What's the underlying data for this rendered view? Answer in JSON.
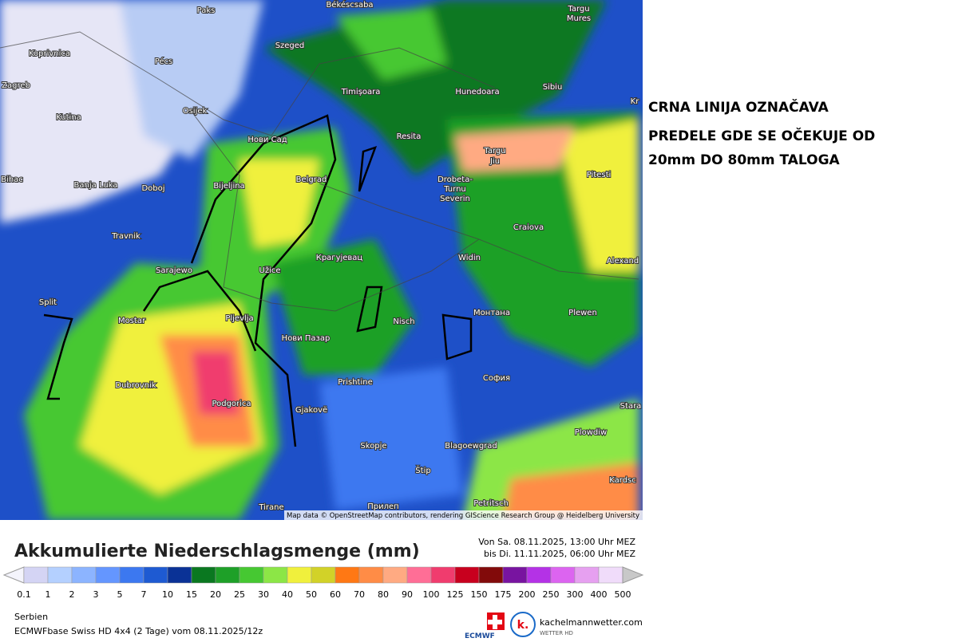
{
  "annotation": {
    "lines": [
      "CRNA LINIJA OZNAČAVA",
      "PREDELE GDE SE OČEKUJE OD",
      "20mm DO 80mm TALOGA"
    ]
  },
  "map": {
    "attribution": "Map data © OpenStreetMap contributors, rendering GIScience Research Group @ Heidelberg University",
    "labels": [
      "Paks",
      "Békéscsaba",
      "Targu",
      "Mures",
      "Koprivnica",
      "Pécs",
      "Szeged",
      "Zagreb",
      "Osijek",
      "Timișoara",
      "Hunedoara",
      "Sibiu",
      "Kutina",
      "Нови Сад",
      "Resita",
      "Targu",
      "Jiu",
      "Banja Luka",
      "Doboj",
      "Bijeljina",
      "Belgrad",
      "Drobeta-",
      "Turnu",
      "Severin",
      "Pitesti",
      "Travnik",
      "Craiova",
      "Sarajewo",
      "Užice",
      "Крагујевац",
      "Widin",
      "Alexand",
      "Split",
      "Mostar",
      "Pljevlja",
      "Nisch",
      "Монтана",
      "Plewen",
      "Нови Пазар",
      "София",
      "Dubrovnik",
      "Podgorica",
      "Prishtine",
      "Gjakovë",
      "Plowdiw",
      "Stara",
      "Skopje",
      "Blagoewgrad",
      "Štip",
      "Tirane",
      "Прилеп",
      "Petritsch",
      "Kardsc",
      "Kr",
      "Bihac"
    ]
  },
  "legend": {
    "title": "Akkumulierte Niederschlagsmenge (mm)",
    "period": [
      "Von Sa. 08.11.2025, 13:00 Uhr MEZ",
      "bis Di. 11.11.2025, 06:00 Uhr MEZ"
    ],
    "labels": [
      "0.1",
      "1",
      "2",
      "3",
      "5",
      "7",
      "10",
      "15",
      "20",
      "25",
      "30",
      "40",
      "50",
      "60",
      "70",
      "80",
      "90",
      "100",
      "125",
      "150",
      "175",
      "200",
      "250",
      "300",
      "400",
      "500"
    ],
    "colors": [
      "#f4f4fc",
      "#d4d4f4",
      "#b4d0ff",
      "#8cb4ff",
      "#6496ff",
      "#3c78f0",
      "#1e5ad2",
      "#0a3296",
      "#0a7820",
      "#1ea028",
      "#46c832",
      "#8ce646",
      "#f0f03c",
      "#d2d228",
      "#ff7814",
      "#ff8c46",
      "#ffaa82",
      "#ff6e96",
      "#f03c6e",
      "#c8001e",
      "#820a0a",
      "#7814a0",
      "#b432e6",
      "#dc64f0",
      "#e6a0f0",
      "#f0dcfa",
      "#c8c8c8"
    ]
  },
  "footer": {
    "region": "Serbien",
    "model": "ECMWFbase Swiss HD 4x4 (2 Tage) vom 08.11.2025/12z",
    "brand": "kachelmannwetter.com",
    "brand_sub": "WETTER HD",
    "logo": "ECMWF"
  }
}
